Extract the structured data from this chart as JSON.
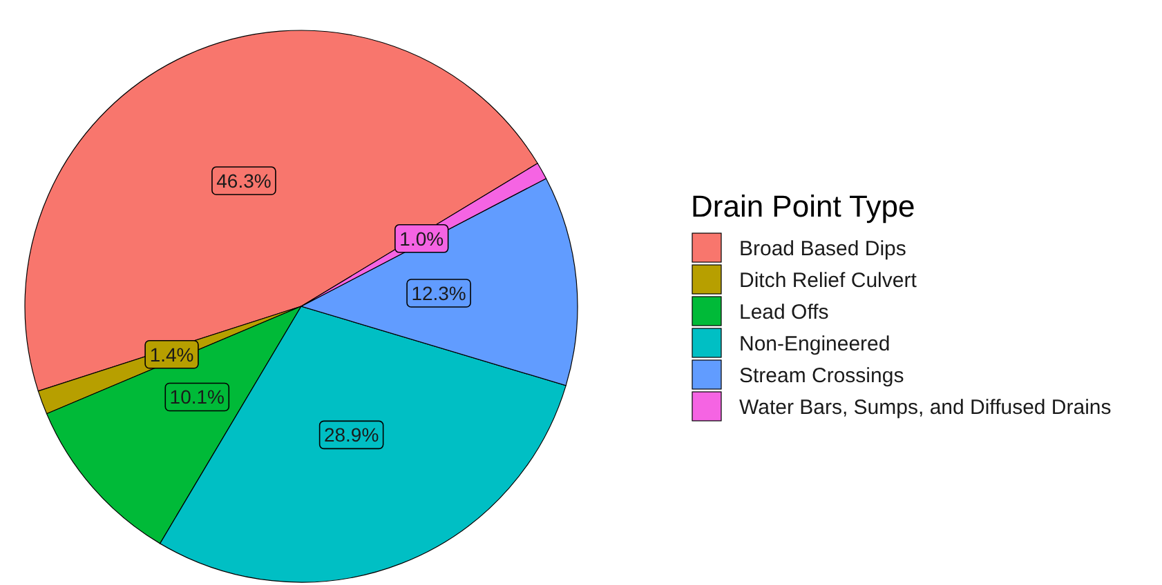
{
  "chart_data": {
    "type": "pie",
    "legend_title": "Drain Point Type",
    "categories": [
      "Broad Based Dips",
      "Ditch Relief Culvert",
      "Lead Offs",
      "Non-Engineered",
      "Stream Crossings",
      "Water Bars, Sumps, and Diffused Drains"
    ],
    "values": [
      46.3,
      1.4,
      10.1,
      28.9,
      12.3,
      1.0
    ],
    "colors": [
      "#f8766d",
      "#b79f00",
      "#00ba38",
      "#00bfc4",
      "#619cff",
      "#f564e3"
    ],
    "value_labels": [
      "46.3%",
      "1.4%",
      "10.1%",
      "28.9%",
      "12.3%",
      "1.0%"
    ],
    "legend": "right"
  }
}
